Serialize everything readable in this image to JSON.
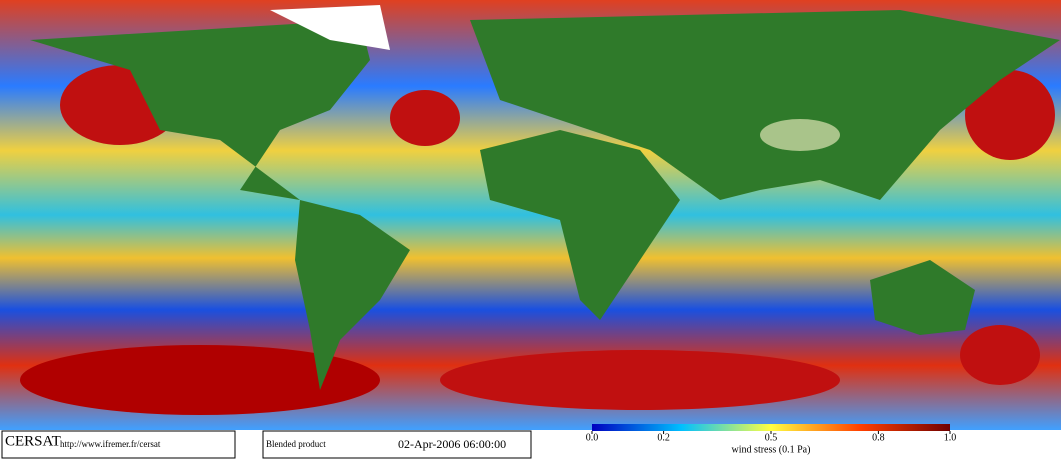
{
  "footer": {
    "logo": "CERSAT",
    "url": "http://www.ifremer.fr/cersat",
    "product": "Blended product",
    "date": "02-Apr-2006 06:00:00"
  },
  "colorbar": {
    "label": "wind stress (0.1 Pa)",
    "lim": [
      0,
      1
    ],
    "ticks": [
      {
        "value": 0,
        "label": "0.0"
      },
      0.2,
      0.5,
      0.8,
      {
        "value": 1,
        "label": "1.0"
      }
    ]
  }
}
